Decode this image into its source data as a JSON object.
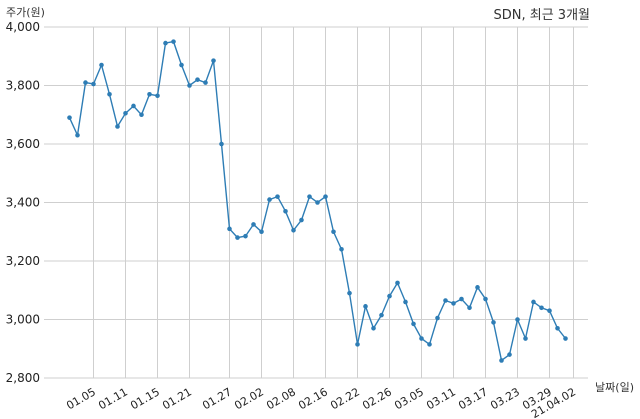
{
  "chart_data": {
    "type": "line",
    "title": "SDN, 최근 3개월",
    "ylabel": "주가(원)",
    "xlabel": "날짜(일)",
    "ylim": [
      2800,
      4000
    ],
    "yticks": [
      4000,
      3800,
      3600,
      3400,
      3200,
      3000,
      2800
    ],
    "ytick_labels": [
      "4,000",
      "3,800",
      "3,600",
      "3,400",
      "3,200",
      "3,000",
      "2,800"
    ],
    "xtick_labels": [
      "01.05",
      "01.11",
      "01.15",
      "01.21",
      "01.27",
      "02.02",
      "02.08",
      "02.16",
      "02.22",
      "02.26",
      "03.05",
      "03.11",
      "03.17",
      "03.23",
      "03.29",
      "21.04.02"
    ],
    "xtick_index": [
      3,
      7,
      11,
      15,
      20,
      24,
      28,
      32,
      36,
      40,
      44,
      48,
      52,
      56,
      60,
      63
    ],
    "grid": true,
    "color": "#2e7db5",
    "series": [
      {
        "values": [
          3690,
          3630,
          3810,
          3805,
          3870,
          3770,
          3660,
          3705,
          3730,
          3700,
          3770,
          3765,
          3945,
          3950,
          3870,
          3800,
          3820,
          3810,
          3885,
          3600,
          3310,
          3280,
          3285,
          3325,
          3300,
          3410,
          3420,
          3370,
          3305,
          3340,
          3420,
          3400,
          3420,
          3300,
          3240,
          3090,
          2915,
          3045,
          2970,
          3015,
          3080,
          3125,
          3060,
          2985,
          2935,
          2915,
          3005,
          3065,
          3055,
          3070,
          3040,
          3110,
          3070,
          2990,
          2860,
          2880,
          3000,
          2935,
          3060,
          3040,
          3030,
          2970,
          2935
        ]
      }
    ]
  }
}
